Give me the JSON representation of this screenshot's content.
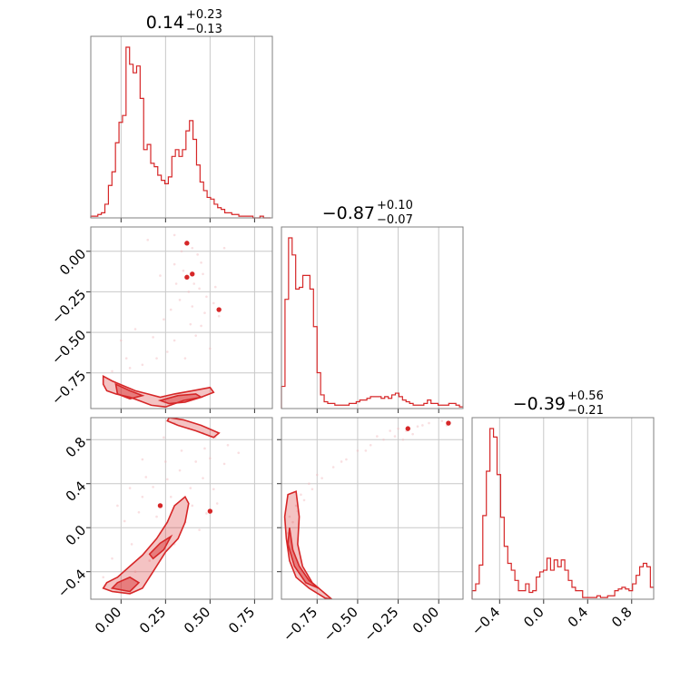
{
  "colors": {
    "accent": "#d62728",
    "fill_light": "#f4b6b8",
    "scatter": "#f2b8bd"
  },
  "chart_data": {
    "type": "corner",
    "parameters": [
      {
        "range": [
          -0.17,
          0.85
        ],
        "ticks": [
          0.0,
          0.25,
          0.5,
          0.75
        ],
        "tick_labels": [
          "0.00",
          "0.25",
          "0.50",
          "0.75"
        ]
      },
      {
        "range": [
          -0.97,
          0.15
        ],
        "ticks": [
          -0.75,
          -0.5,
          -0.25,
          0.0
        ],
        "tick_labels": [
          "−0.75",
          "−0.50",
          "−0.25",
          "0.00"
        ]
      },
      {
        "range": [
          -0.65,
          1.0
        ],
        "ticks": [
          -0.4,
          0.0,
          0.4,
          0.8
        ],
        "tick_labels": [
          "−0.4",
          "0.0",
          "0.4",
          "0.8"
        ]
      }
    ],
    "titles": [
      {
        "value": "0.14",
        "upper": "+0.23",
        "lower": "−0.13"
      },
      {
        "value": "−0.87",
        "upper": "+0.10",
        "lower": "−0.07"
      },
      {
        "value": "−0.39",
        "upper": "+0.56",
        "lower": "−0.21"
      }
    ],
    "histograms": [
      {
        "param": 0,
        "edges_start": -0.17,
        "bin_width": 0.0198,
        "heights": [
          0.01,
          0.01,
          0.02,
          0.03,
          0.08,
          0.19,
          0.27,
          0.44,
          0.56,
          0.6,
          1.0,
          0.9,
          0.85,
          0.89,
          0.7,
          0.4,
          0.43,
          0.32,
          0.3,
          0.25,
          0.22,
          0.2,
          0.24,
          0.36,
          0.4,
          0.36,
          0.4,
          0.51,
          0.57,
          0.46,
          0.31,
          0.21,
          0.16,
          0.12,
          0.11,
          0.08,
          0.06,
          0.05,
          0.03,
          0.03,
          0.02,
          0.02,
          0.01,
          0.01,
          0.01,
          0.01,
          0.0,
          0.0,
          0.01,
          0.0,
          0.0
        ]
      },
      {
        "param": 1,
        "edges_start": -0.97,
        "bin_width": 0.02196,
        "heights": [
          0.13,
          0.64,
          1.0,
          0.9,
          0.7,
          0.71,
          0.78,
          0.78,
          0.7,
          0.48,
          0.21,
          0.08,
          0.04,
          0.03,
          0.03,
          0.02,
          0.02,
          0.02,
          0.02,
          0.03,
          0.03,
          0.04,
          0.05,
          0.05,
          0.06,
          0.07,
          0.07,
          0.07,
          0.06,
          0.07,
          0.06,
          0.08,
          0.09,
          0.07,
          0.05,
          0.04,
          0.03,
          0.02,
          0.02,
          0.02,
          0.03,
          0.05,
          0.03,
          0.03,
          0.02,
          0.02,
          0.02,
          0.03,
          0.03,
          0.02,
          0.01
        ]
      },
      {
        "param": 2,
        "edges_start": -0.65,
        "bin_width": 0.0324,
        "heights": [
          0.05,
          0.09,
          0.2,
          0.49,
          0.75,
          1.0,
          0.95,
          0.73,
          0.48,
          0.31,
          0.21,
          0.17,
          0.11,
          0.05,
          0.05,
          0.09,
          0.04,
          0.05,
          0.13,
          0.16,
          0.17,
          0.24,
          0.17,
          0.23,
          0.19,
          0.23,
          0.17,
          0.11,
          0.07,
          0.05,
          0.05,
          0.01,
          0.01,
          0.01,
          0.01,
          0.02,
          0.01,
          0.01,
          0.02,
          0.02,
          0.05,
          0.06,
          0.07,
          0.06,
          0.05,
          0.09,
          0.14,
          0.19,
          0.21,
          0.19,
          0.07
        ]
      }
    ],
    "scatter_panels": [
      {
        "x_param": 0,
        "y_param": 1,
        "points": [
          [
            0.3,
            0.1
          ],
          [
            0.36,
            0.05
          ],
          [
            0.4,
            0.02
          ],
          [
            0.43,
            -0.02
          ],
          [
            0.3,
            -0.08
          ],
          [
            0.35,
            -0.12
          ],
          [
            0.41,
            -0.2
          ],
          [
            0.44,
            -0.23
          ],
          [
            0.48,
            -0.28
          ],
          [
            0.38,
            -0.25
          ],
          [
            0.33,
            -0.3
          ],
          [
            0.52,
            -0.32
          ],
          [
            0.47,
            -0.38
          ],
          [
            0.55,
            -0.4
          ],
          [
            0.39,
            -0.45
          ],
          [
            0.42,
            -0.52
          ],
          [
            0.3,
            -0.55
          ],
          [
            0.26,
            -0.62
          ],
          [
            0.2,
            -0.66
          ],
          [
            0.12,
            -0.7
          ],
          [
            0.05,
            -0.72
          ],
          [
            -0.05,
            -0.74
          ],
          [
            0.0,
            -0.55
          ],
          [
            0.08,
            -0.48
          ],
          [
            0.15,
            0.07
          ],
          [
            0.22,
            -0.15
          ],
          [
            0.45,
            -0.07
          ],
          [
            0.58,
            0.02
          ],
          [
            0.5,
            -0.6
          ],
          [
            0.36,
            -0.66
          ],
          [
            0.28,
            -0.36
          ],
          [
            0.24,
            -0.42
          ],
          [
            0.34,
            0.0
          ],
          [
            0.46,
            -0.14
          ],
          [
            0.4,
            -0.34
          ],
          [
            0.53,
            -0.22
          ],
          [
            0.31,
            -0.2
          ],
          [
            0.45,
            -0.46
          ],
          [
            0.18,
            -0.53
          ],
          [
            0.03,
            -0.66
          ]
        ],
        "contours": [
          {
            "level": "outer",
            "path": [
              [
                -0.1,
                -0.77
              ],
              [
                -0.05,
                -0.8
              ],
              [
                0.08,
                -0.86
              ],
              [
                0.15,
                -0.88
              ],
              [
                0.22,
                -0.9
              ],
              [
                0.3,
                -0.88
              ],
              [
                0.4,
                -0.86
              ],
              [
                0.5,
                -0.84
              ],
              [
                0.52,
                -0.87
              ],
              [
                0.45,
                -0.9
              ],
              [
                0.35,
                -0.92
              ],
              [
                0.25,
                -0.96
              ],
              [
                0.17,
                -0.95
              ],
              [
                0.1,
                -0.92
              ],
              [
                0.05,
                -0.9
              ],
              [
                -0.03,
                -0.88
              ],
              [
                -0.08,
                -0.86
              ],
              [
                -0.1,
                -0.82
              ]
            ]
          },
          {
            "level": "inner",
            "path": [
              [
                -0.03,
                -0.82
              ],
              [
                0.05,
                -0.86
              ],
              [
                0.12,
                -0.89
              ],
              [
                0.05,
                -0.91
              ],
              [
                -0.02,
                -0.88
              ]
            ]
          },
          {
            "level": "inner",
            "path": [
              [
                0.22,
                -0.92
              ],
              [
                0.32,
                -0.89
              ],
              [
                0.42,
                -0.88
              ],
              [
                0.45,
                -0.9
              ],
              [
                0.36,
                -0.93
              ],
              [
                0.27,
                -0.94
              ]
            ]
          }
        ],
        "islands": [
          [
            0.37,
            0.05
          ],
          [
            0.37,
            -0.16
          ],
          [
            0.4,
            -0.14
          ],
          [
            0.55,
            -0.36
          ]
        ]
      },
      {
        "x_param": 0,
        "y_param": 2,
        "points": [
          [
            0.3,
            0.95
          ],
          [
            0.38,
            0.9
          ],
          [
            0.46,
            0.86
          ],
          [
            0.53,
            0.82
          ],
          [
            0.6,
            0.75
          ],
          [
            0.66,
            0.68
          ],
          [
            0.5,
            0.63
          ],
          [
            0.42,
            0.6
          ],
          [
            0.33,
            0.52
          ],
          [
            0.26,
            0.44
          ],
          [
            0.18,
            0.37
          ],
          [
            0.12,
            0.28
          ],
          [
            0.46,
            0.45
          ],
          [
            0.52,
            0.35
          ],
          [
            0.4,
            0.2
          ],
          [
            0.48,
            0.13
          ],
          [
            0.36,
            0.05
          ],
          [
            0.22,
            -0.05
          ],
          [
            0.06,
            -0.15
          ],
          [
            -0.05,
            -0.28
          ],
          [
            -0.1,
            -0.45
          ],
          [
            0.02,
            0.06
          ],
          [
            0.1,
            0.14
          ],
          [
            0.25,
            0.6
          ],
          [
            0.16,
            -0.3
          ],
          [
            0.34,
            0.7
          ],
          [
            0.44,
            -0.02
          ],
          [
            0.28,
            0.28
          ],
          [
            0.58,
            0.58
          ],
          [
            0.2,
            0.1
          ],
          [
            0.08,
            -0.4
          ],
          [
            0.39,
            0.36
          ],
          [
            0.14,
            0.46
          ],
          [
            0.3,
            -0.15
          ],
          [
            0.54,
            0.22
          ],
          [
            0.47,
            0.72
          ],
          [
            0.24,
            0.82
          ],
          [
            0.12,
            0.62
          ],
          [
            0.05,
            0.36
          ],
          [
            -0.02,
            0.2
          ]
        ],
        "contours": [
          {
            "level": "outer",
            "path": [
              [
                -0.1,
                -0.55
              ],
              [
                -0.05,
                -0.58
              ],
              [
                0.05,
                -0.6
              ],
              [
                0.12,
                -0.55
              ],
              [
                0.18,
                -0.4
              ],
              [
                0.25,
                -0.22
              ],
              [
                0.32,
                -0.1
              ],
              [
                0.36,
                0.05
              ],
              [
                0.38,
                0.22
              ],
              [
                0.36,
                0.28
              ],
              [
                0.3,
                0.2
              ],
              [
                0.26,
                0.05
              ],
              [
                0.2,
                -0.1
              ],
              [
                0.12,
                -0.25
              ],
              [
                0.05,
                -0.35
              ],
              [
                -0.02,
                -0.45
              ],
              [
                -0.08,
                -0.5
              ]
            ]
          },
          {
            "level": "inner",
            "path": [
              [
                -0.05,
                -0.55
              ],
              [
                0.05,
                -0.58
              ],
              [
                0.1,
                -0.5
              ],
              [
                0.05,
                -0.45
              ],
              [
                -0.02,
                -0.5
              ]
            ]
          },
          {
            "level": "inner",
            "path": [
              [
                0.18,
                -0.28
              ],
              [
                0.24,
                -0.2
              ],
              [
                0.28,
                -0.08
              ],
              [
                0.22,
                -0.14
              ],
              [
                0.16,
                -0.24
              ]
            ]
          },
          {
            "level": "outer",
            "path": [
              [
                0.27,
                1.0
              ],
              [
                0.35,
                0.98
              ],
              [
                0.45,
                0.93
              ],
              [
                0.55,
                0.86
              ],
              [
                0.52,
                0.82
              ],
              [
                0.42,
                0.88
              ],
              [
                0.32,
                0.93
              ],
              [
                0.26,
                0.97
              ]
            ]
          }
        ],
        "islands": [
          [
            0.22,
            0.2
          ],
          [
            0.5,
            0.15
          ]
        ]
      },
      {
        "x_param": 1,
        "y_param": 2,
        "points": [
          [
            -0.93,
            -0.05
          ],
          [
            -0.9,
            0.05
          ],
          [
            -0.87,
            0.15
          ],
          [
            -0.83,
            0.25
          ],
          [
            -0.78,
            0.35
          ],
          [
            -0.72,
            0.45
          ],
          [
            -0.65,
            0.55
          ],
          [
            -0.57,
            0.62
          ],
          [
            -0.5,
            0.7
          ],
          [
            -0.42,
            0.75
          ],
          [
            -0.34,
            0.8
          ],
          [
            -0.27,
            0.83
          ],
          [
            -0.2,
            0.88
          ],
          [
            -0.13,
            0.92
          ],
          [
            -0.06,
            0.95
          ],
          [
            0.02,
            0.97
          ],
          [
            -0.38,
            0.83
          ],
          [
            -0.3,
            0.88
          ],
          [
            -0.22,
            0.8
          ],
          [
            -0.16,
            0.85
          ],
          [
            -0.85,
            0.3
          ],
          [
            -0.8,
            0.4
          ],
          [
            -0.88,
            0.2
          ],
          [
            -0.92,
            0.1
          ],
          [
            -0.75,
            0.48
          ],
          [
            -0.6,
            0.6
          ],
          [
            -0.45,
            0.7
          ],
          [
            -0.25,
            0.9
          ],
          [
            -0.1,
            0.93
          ],
          [
            0.05,
            0.93
          ]
        ],
        "contours": [
          {
            "level": "outer",
            "path": [
              [
                -0.93,
                0.3
              ],
              [
                -0.88,
                0.33
              ],
              [
                -0.86,
                0.1
              ],
              [
                -0.87,
                -0.15
              ],
              [
                -0.84,
                -0.35
              ],
              [
                -0.78,
                -0.5
              ],
              [
                -0.7,
                -0.6
              ],
              [
                -0.66,
                -0.65
              ],
              [
                -0.7,
                -0.64
              ],
              [
                -0.8,
                -0.55
              ],
              [
                -0.88,
                -0.45
              ],
              [
                -0.92,
                -0.3
              ],
              [
                -0.94,
                -0.1
              ],
              [
                -0.95,
                0.1
              ]
            ]
          },
          {
            "level": "inner",
            "path": [
              [
                -0.92,
                0.0
              ],
              [
                -0.9,
                -0.2
              ],
              [
                -0.86,
                -0.35
              ],
              [
                -0.8,
                -0.48
              ],
              [
                -0.74,
                -0.55
              ],
              [
                -0.82,
                -0.5
              ],
              [
                -0.89,
                -0.35
              ],
              [
                -0.93,
                -0.15
              ]
            ]
          }
        ],
        "islands": [
          [
            -0.19,
            0.9
          ],
          [
            0.06,
            0.95
          ]
        ]
      }
    ]
  }
}
